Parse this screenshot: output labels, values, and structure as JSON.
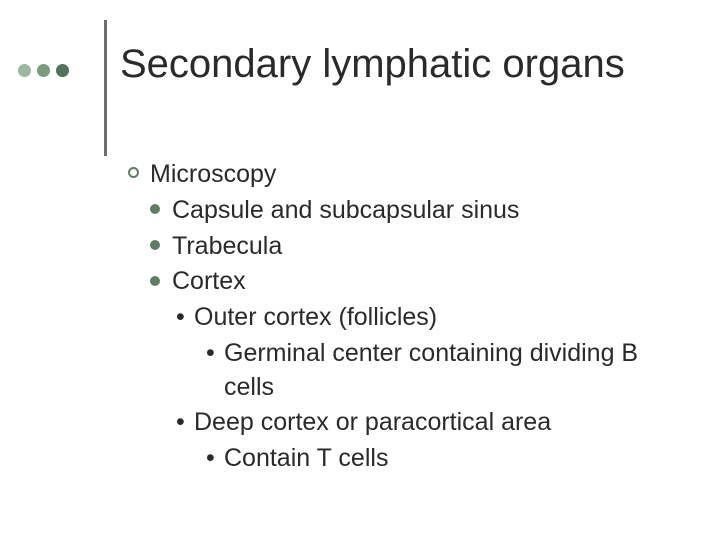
{
  "theme": {
    "background": "#ffffff",
    "text_color": "#2a2a2a",
    "accent_dot_colors": [
      "#9eb7a0",
      "#7b9b7d",
      "#52725b"
    ],
    "vline_color": "#6e6e6e",
    "bullet_ring_color": "#5f7d65",
    "bullet_fill_color": "#5f7d65",
    "title_fontsize_pt": 30,
    "body_fontsize_pt": 19,
    "font_family": "Arial"
  },
  "title": "Secondary lymphatic organs",
  "outline": {
    "lvl1": "Microscopy",
    "lvl2_a": "Capsule and subcapsular sinus",
    "lvl2_b": "Trabecula",
    "lvl2_c": "Cortex",
    "lvl3_a": "Outer cortex (follicles)",
    "lvl4_a": "Germinal center containing dividing B cells",
    "lvl3_b": "Deep cortex or paracortical area",
    "lvl4_b": "Contain T cells"
  }
}
